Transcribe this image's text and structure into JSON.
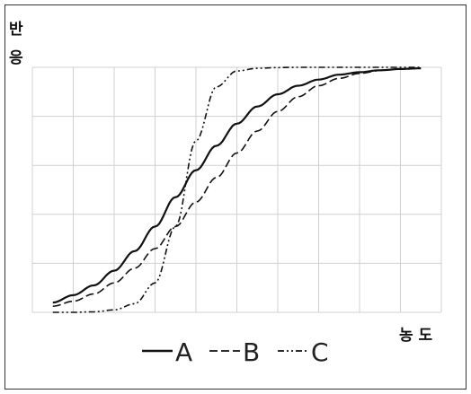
{
  "chart_data": {
    "type": "line",
    "ylabel_chars": [
      "반",
      "응"
    ],
    "xlabel": "농 도",
    "x": [
      0,
      5,
      10,
      15,
      20,
      25,
      30,
      35,
      40,
      45,
      50,
      55,
      60,
      65,
      70,
      75,
      80,
      85,
      90,
      95,
      100
    ],
    "xlim": [
      0,
      100
    ],
    "ylim": [
      0,
      100
    ],
    "series": [
      {
        "name": "A",
        "style": "solid",
        "values": [
          2,
          4,
          7,
          11,
          17,
          25,
          35,
          47,
          58,
          68,
          77,
          84,
          89,
          92.5,
          95,
          97,
          98,
          98.8,
          99.3,
          99.6,
          99.8
        ]
      },
      {
        "name": "B",
        "style": "dashed",
        "values": [
          1,
          2.5,
          4.5,
          7.5,
          12,
          18,
          26,
          35,
          45,
          55,
          65,
          74,
          82,
          88,
          92.5,
          95.5,
          97.5,
          98.7,
          99.3,
          99.6,
          99.8
        ]
      },
      {
        "name": "C",
        "style": "dash-dot-dot",
        "values": [
          0,
          0,
          0,
          0.2,
          1,
          3.5,
          12,
          35,
          70,
          92,
          98.5,
          99.6,
          99.9,
          100,
          100,
          100,
          100,
          100,
          100,
          100,
          100
        ]
      }
    ],
    "grid": true,
    "legend_position": "bottom",
    "colors": {
      "line": "#111111",
      "grid": "#d0d0d0"
    }
  }
}
